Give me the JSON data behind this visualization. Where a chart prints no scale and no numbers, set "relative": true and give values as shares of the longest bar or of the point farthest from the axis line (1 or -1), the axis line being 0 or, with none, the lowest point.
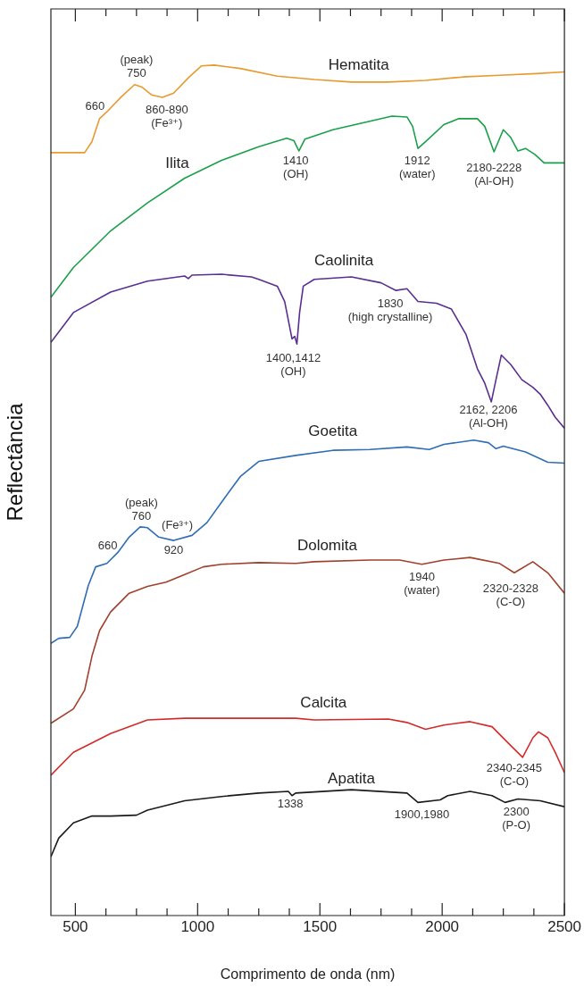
{
  "chart_data": {
    "type": "line",
    "relative": true,
    "xlabel": "Comprimento de onda (nm)",
    "ylabel": "Reflectância",
    "xlim": [
      400,
      2500
    ],
    "xticks": [
      500,
      {
        "value": 625,
        "label": null
      },
      {
        "value": 750,
        "label": null
      },
      {
        "value": 875,
        "label": null
      },
      1000,
      {
        "value": 1125,
        "label": null
      },
      {
        "value": 1250,
        "label": null
      },
      {
        "value": 1375,
        "label": null
      },
      1500,
      {
        "value": 1625,
        "label": null
      },
      {
        "value": 1750,
        "label": null
      },
      {
        "value": 1875,
        "label": null
      },
      2000,
      {
        "value": 2125,
        "label": null
      },
      {
        "value": 2250,
        "label": null
      },
      {
        "value": 2375,
        "label": null
      },
      2500
    ],
    "marker": "none",
    "line_style": "solid",
    "series": [
      {
        "name": "Hematita",
        "color": "#e89a30",
        "x": [
          400,
          538,
          568,
          599,
          629,
          689,
          742,
          773,
          811,
          856,
          902,
          962,
          1015,
          1068,
          1174,
          1326,
          1477,
          1629,
          1780,
          1932,
          2083,
          2235,
          2386,
          2500
        ],
        "values": [
          0.897,
          0.897,
          0.91,
          0.937,
          0.945,
          0.963,
          0.977,
          0.974,
          0.965,
          0.962,
          0.967,
          0.985,
          0.999,
          1.0,
          0.996,
          0.987,
          0.983,
          0.98,
          0.98,
          0.982,
          0.986,
          0.988,
          0.99,
          0.992
        ]
      },
      {
        "name": "Ilita",
        "color": "#1aa04a",
        "x": [
          400,
          492,
          644,
          795,
          947,
          1098,
          1250,
          1364,
          1394,
          1414,
          1439,
          1553,
          1704,
          1795,
          1856,
          1879,
          1901,
          1932,
          2007,
          2068,
          2144,
          2174,
          2212,
          2250,
          2280,
          2310,
          2341,
          2379,
          2417,
          2462,
          2500
        ],
        "values": [
          0.727,
          0.762,
          0.805,
          0.838,
          0.867,
          0.888,
          0.904,
          0.914,
          0.911,
          0.899,
          0.913,
          0.924,
          0.934,
          0.94,
          0.939,
          0.928,
          0.902,
          0.91,
          0.93,
          0.937,
          0.937,
          0.928,
          0.898,
          0.924,
          0.915,
          0.899,
          0.902,
          0.895,
          0.885,
          0.885,
          0.885
        ]
      },
      {
        "name": "Caolinita",
        "color": "#5a2f91",
        "x": [
          400,
          492,
          644,
          795,
          947,
          962,
          977,
          1098,
          1220,
          1250,
          1326,
          1356,
          1386,
          1397,
          1406,
          1417,
          1432,
          1477,
          1629,
          1750,
          1811,
          1856,
          1901,
          1977,
          2038,
          2098,
          2144,
          2174,
          2201,
          2220,
          2242,
          2280,
          2326,
          2371,
          2401,
          2432,
          2462,
          2500
        ],
        "values": [
          0.674,
          0.709,
          0.733,
          0.746,
          0.752,
          0.749,
          0.753,
          0.754,
          0.751,
          0.748,
          0.74,
          0.722,
          0.678,
          0.681,
          0.672,
          0.709,
          0.74,
          0.748,
          0.751,
          0.744,
          0.735,
          0.737,
          0.722,
          0.72,
          0.713,
          0.683,
          0.643,
          0.626,
          0.604,
          0.63,
          0.659,
          0.648,
          0.63,
          0.621,
          0.613,
          0.6,
          0.586,
          0.573
        ]
      },
      {
        "name": "Goetita",
        "color": "#2f6db5",
        "x": [
          400,
          432,
          477,
          508,
          553,
          583,
          629,
          674,
          720,
          765,
          795,
          841,
          902,
          977,
          1038,
          1098,
          1174,
          1250,
          1401,
          1553,
          1704,
          1856,
          1947,
          2007,
          2129,
          2189,
          2220,
          2250,
          2341,
          2432,
          2500
        ],
        "values": [
          0.32,
          0.326,
          0.327,
          0.34,
          0.388,
          0.41,
          0.414,
          0.427,
          0.445,
          0.457,
          0.456,
          0.445,
          0.441,
          0.447,
          0.462,
          0.486,
          0.516,
          0.534,
          0.541,
          0.547,
          0.548,
          0.551,
          0.548,
          0.554,
          0.559,
          0.556,
          0.549,
          0.552,
          0.545,
          0.533,
          0.532
        ]
      },
      {
        "name": "Dolomita",
        "color": "#a0412d",
        "x": [
          400,
          492,
          538,
          568,
          599,
          644,
          720,
          795,
          871,
          947,
          1023,
          1098,
          1250,
          1401,
          1477,
          1704,
          1826,
          1917,
          2007,
          2114,
          2235,
          2295,
          2371,
          2432,
          2500
        ],
        "values": [
          0.226,
          0.243,
          0.265,
          0.305,
          0.335,
          0.357,
          0.379,
          0.387,
          0.392,
          0.401,
          0.41,
          0.413,
          0.415,
          0.414,
          0.416,
          0.418,
          0.418,
          0.413,
          0.418,
          0.421,
          0.414,
          0.403,
          0.416,
          0.403,
          0.379
        ]
      },
      {
        "name": "Calcita",
        "color": "#d42a2a",
        "x": [
          400,
          492,
          644,
          795,
          947,
          1401,
          1477,
          1780,
          1856,
          1932,
          2007,
          2114,
          2204,
          2280,
          2329,
          2371,
          2394,
          2432,
          2462,
          2500
        ],
        "values": [
          0.165,
          0.192,
          0.214,
          0.23,
          0.232,
          0.232,
          0.23,
          0.231,
          0.227,
          0.219,
          0.224,
          0.228,
          0.222,
          0.2,
          0.186,
          0.209,
          0.216,
          0.209,
          0.192,
          0.168
        ]
      },
      {
        "name": "Apatita",
        "color": "#1a1a1a",
        "x": [
          400,
          432,
          492,
          568,
          644,
          750,
          795,
          947,
          1098,
          1250,
          1371,
          1386,
          1401,
          1629,
          1856,
          1901,
          1992,
          2023,
          2114,
          2204,
          2257,
          2310,
          2401,
          2500
        ],
        "values": [
          0.069,
          0.091,
          0.109,
          0.117,
          0.117,
          0.118,
          0.124,
          0.135,
          0.14,
          0.144,
          0.146,
          0.141,
          0.144,
          0.148,
          0.144,
          0.133,
          0.136,
          0.141,
          0.146,
          0.141,
          0.133,
          0.137,
          0.135,
          0.128
        ]
      }
    ],
    "annotations": [
      "(peak)\n750",
      "660",
      "860-890\n(Fe³⁺)",
      "1410\n(OH)",
      "1912\n(water)",
      "2180-2228\n(Al-OH)",
      "1830\n(high crystalline)",
      "1400,1412\n(OH)",
      "2162, 2206\n(Al-OH)",
      "(peak)\n760",
      "(Fe³⁺)",
      "660",
      "920",
      "1940\n(water)",
      "2320-2328\n(C-O)",
      "2340-2345\n(C-O)",
      "1338",
      "1900,1980",
      "2300\n(P-O)"
    ]
  }
}
